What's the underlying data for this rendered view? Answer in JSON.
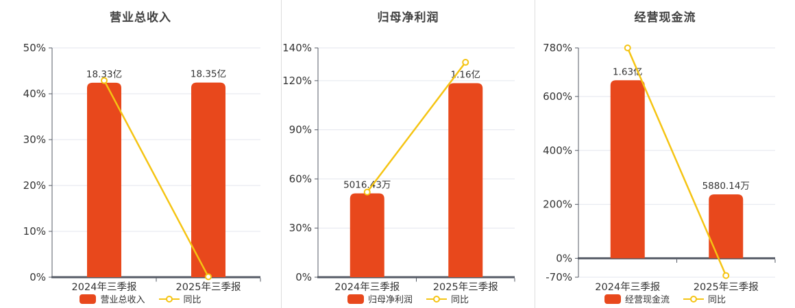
{
  "style": {
    "bar_color": "#e8481c",
    "line_color": "#f5c413",
    "grid_color": "#e3e6ee",
    "axis_color": "#565b66",
    "label_color": "#333333",
    "title_color": "#404040",
    "divider_color": "#dcdcdc",
    "background": "#ffffff"
  },
  "chart_data": [
    {
      "type": "bar+line",
      "title": "营业总收入",
      "categories": [
        "2024年三季报",
        "2025年三季报"
      ],
      "bar_series": {
        "name": "营业总收入",
        "value_labels": [
          "18.33亿",
          "18.35亿"
        ],
        "plotted_pct": [
          42.4,
          42.45
        ]
      },
      "line_series": {
        "name": "同比",
        "values_pct": [
          42.9,
          0.1
        ]
      },
      "y_ticks_pct": [
        50,
        40,
        30,
        20,
        10,
        0
      ],
      "ylim": [
        0,
        50
      ],
      "y_tick_suffix": "%",
      "grid": true,
      "legend_position": "bottom"
    },
    {
      "type": "bar+line",
      "title": "归母净利润",
      "categories": [
        "2024年三季报",
        "2025年三季报"
      ],
      "bar_series": {
        "name": "归母净利润",
        "value_labels": [
          "5016.43万",
          "1.16亿"
        ],
        "plotted_pct": [
          51.2,
          118.5
        ]
      },
      "line_series": {
        "name": "同比",
        "values_pct": [
          52.0,
          131.2
        ]
      },
      "y_ticks_pct": [
        140,
        120,
        90,
        60,
        30,
        0
      ],
      "ylim": [
        0,
        140
      ],
      "y_tick_suffix": "%",
      "grid": true,
      "legend_position": "bottom"
    },
    {
      "type": "bar+line",
      "title": "经营现金流",
      "categories": [
        "2024年三季报",
        "2025年三季报"
      ],
      "bar_series": {
        "name": "经营现金流",
        "value_labels": [
          "1.63亿",
          "5880.14万"
        ],
        "plotted_pct": [
          660,
          237
        ]
      },
      "line_series": {
        "name": "同比",
        "values_pct": [
          780,
          -63.9
        ]
      },
      "y_ticks_pct": [
        780,
        600,
        400,
        200,
        0,
        -70
      ],
      "ylim": [
        -70,
        780
      ],
      "y_tick_suffix": "%",
      "grid": true,
      "legend_position": "bottom"
    }
  ]
}
